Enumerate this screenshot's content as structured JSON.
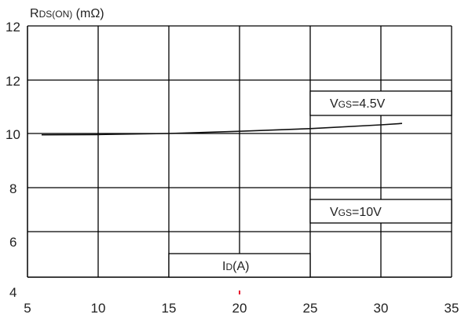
{
  "chart_data": {
    "type": "line",
    "ylabel": "RDS(ON) (mΩ)",
    "ylabel_parts": {
      "main": "R",
      "sub": "DS(ON)",
      "unit": " (mΩ)"
    },
    "xlabel_parts": {
      "main": "I",
      "sub": "D",
      "unit": "(A)"
    },
    "xlim": [
      5,
      35
    ],
    "x_ticks": [
      5,
      10,
      15,
      20,
      25,
      30,
      35
    ],
    "x_tick_labels": [
      "5",
      "10",
      "15",
      "20",
      "25",
      "30",
      "35"
    ],
    "y_tick_labels": [
      "12",
      "12",
      "10",
      "8",
      "6",
      "4"
    ],
    "grid": true,
    "series": [
      {
        "name": "VGS=4.5V",
        "name_parts": {
          "main": "V",
          "sub": "GS",
          "rest": "=4.5V"
        },
        "x": [
          6,
          10,
          15,
          20,
          25,
          30,
          31.5
        ],
        "y": [
          9.95,
          9.96,
          10.0,
          10.08,
          10.18,
          10.32,
          10.37
        ]
      }
    ],
    "annotations": [
      {
        "main": "V",
        "sub": "GS",
        "rest": "=10V"
      }
    ],
    "colors": {
      "line": "#111111",
      "grid": "#000000",
      "marker": "#e8112d"
    }
  }
}
